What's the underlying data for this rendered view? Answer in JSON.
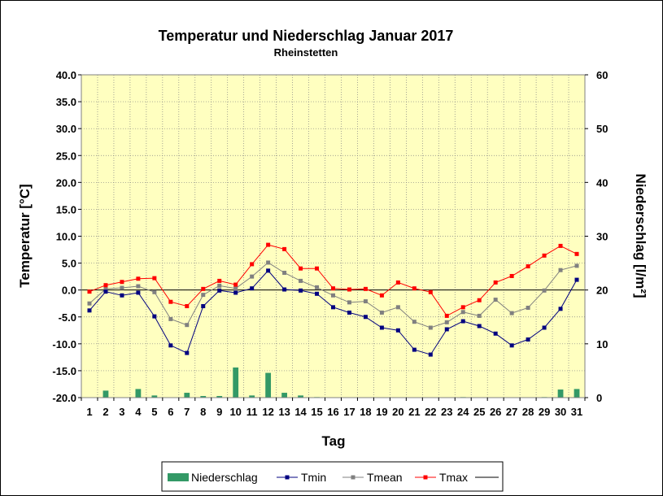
{
  "chart_data": {
    "type": "line",
    "title": "Temperatur und Niederschlag  Januar 2017",
    "subtitle": "Rheinstetten",
    "xlabel": "Tag",
    "ylabel": "Temperatur [°C]",
    "y2label": "Niederschlag [l/m²]",
    "ylim": [
      -20,
      40
    ],
    "y2lim": [
      0,
      60
    ],
    "yticks": [
      "40.0",
      "35.0",
      "30.0",
      "25.0",
      "20.0",
      "15.0",
      "10.0",
      "5.0",
      "0.0",
      "-5.0",
      "-10.0",
      "-15.0",
      "-20.0"
    ],
    "y2ticks": [
      "60",
      "50",
      "40",
      "30",
      "20",
      "10",
      "0"
    ],
    "categories": [
      "1",
      "2",
      "3",
      "4",
      "5",
      "6",
      "7",
      "8",
      "9",
      "10",
      "11",
      "12",
      "13",
      "14",
      "15",
      "16",
      "17",
      "18",
      "19",
      "20",
      "21",
      "22",
      "23",
      "24",
      "25",
      "26",
      "27",
      "28",
      "29",
      "30",
      "31"
    ],
    "plot_background": "#ffffc0",
    "grid": true,
    "legend_position": "bottom",
    "series": [
      {
        "name": "Niederschlag",
        "type": "bar",
        "axis": "y2",
        "color": "#339966",
        "values": [
          0,
          1.3,
          0,
          1.6,
          0.4,
          0,
          0.9,
          0.3,
          0.3,
          5.6,
          0.4,
          4.6,
          0.9,
          0.4,
          0.1,
          0,
          0,
          0,
          0,
          0,
          0,
          0,
          0,
          0.1,
          0,
          0,
          0,
          0,
          0.1,
          1.5,
          1.6
        ]
      },
      {
        "name": "Tmin",
        "type": "line",
        "axis": "y",
        "color": "#000080",
        "values": [
          -3.8,
          -0.3,
          -1.0,
          -0.5,
          -4.9,
          -10.3,
          -11.7,
          -3.0,
          -0.1,
          -0.5,
          0.3,
          3.6,
          0.1,
          -0.1,
          -0.7,
          -3.2,
          -4.2,
          -5.0,
          -7.0,
          -7.5,
          -11.1,
          -12.0,
          -7.3,
          -5.8,
          -6.7,
          -8.1,
          -10.3,
          -9.2,
          -7.0,
          -3.5,
          1.9
        ]
      },
      {
        "name": "Tmean",
        "type": "line",
        "axis": "y",
        "color": "#808080",
        "values": [
          -2.5,
          0.2,
          0.4,
          0.7,
          -0.4,
          -5.4,
          -6.5,
          -0.9,
          0.8,
          0.3,
          2.5,
          5.1,
          3.2,
          1.7,
          0.5,
          -1.0,
          -2.3,
          -2.1,
          -4.2,
          -3.2,
          -5.9,
          -7.0,
          -6.0,
          -4.1,
          -4.8,
          -1.8,
          -4.3,
          -3.3,
          -0.1,
          3.7,
          4.5
        ]
      },
      {
        "name": "Tmax",
        "type": "line",
        "axis": "y",
        "color": "#ff0000",
        "values": [
          -0.3,
          0.9,
          1.5,
          2.1,
          2.2,
          -2.2,
          -3.0,
          0.2,
          1.7,
          1.0,
          4.8,
          8.4,
          7.6,
          4.0,
          4.0,
          0.3,
          0.1,
          0.2,
          -1.0,
          1.4,
          0.3,
          -0.4,
          -4.8,
          -3.2,
          -1.9,
          1.4,
          2.6,
          4.4,
          6.4,
          8.2,
          6.7
        ]
      }
    ],
    "legend": [
      "Niederschlag",
      "Tmin",
      "Tmean",
      "Tmax",
      ""
    ]
  }
}
